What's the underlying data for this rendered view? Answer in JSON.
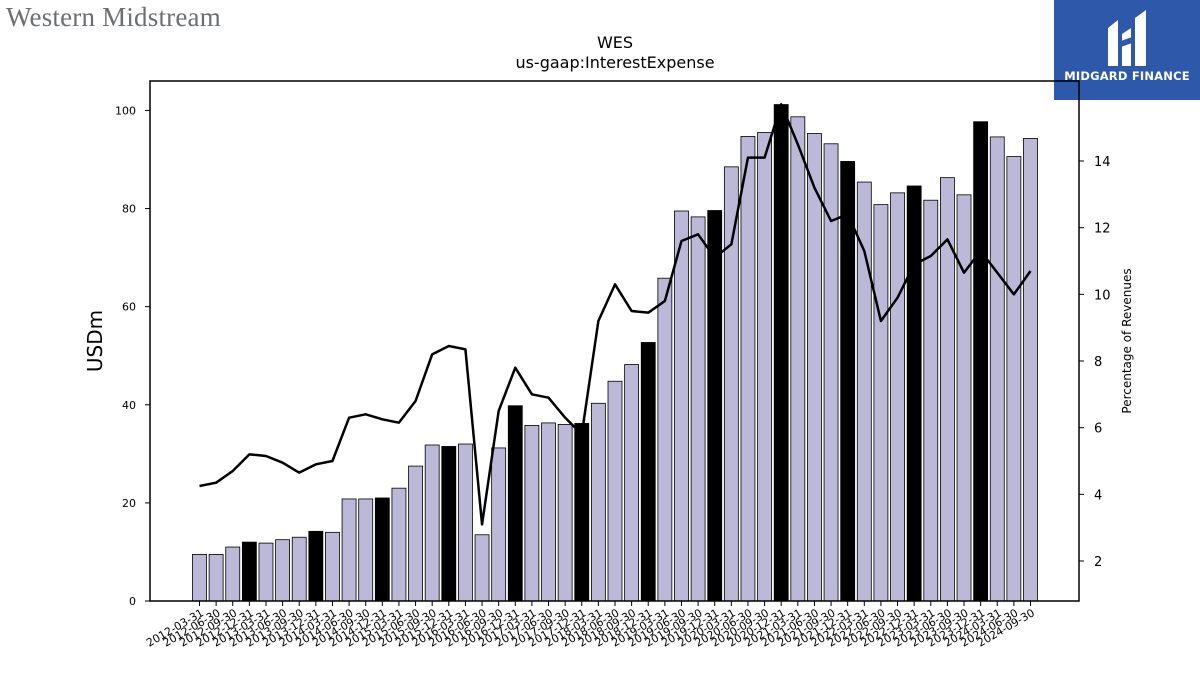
{
  "header": {
    "company_logo_text": "Western Midstream",
    "brand_text": "MIDGARD FINANCE"
  },
  "colors": {
    "bar_default": "#bcb9d8",
    "bar_highlight": "#000000",
    "line": "#000000",
    "brand_bg": "#2e59ab"
  },
  "chart_data": {
    "type": "bar",
    "title": "WES",
    "subtitle": "us-gaap:InterestExpense",
    "ylabel": "USDm",
    "y2label": "Percentage of Revenues",
    "ylim": [
      0,
      106
    ],
    "y2lim": [
      0.8,
      16.4
    ],
    "yticks": [
      0,
      20,
      40,
      60,
      80,
      100
    ],
    "y2ticks": [
      2,
      4,
      6,
      8,
      10,
      12,
      14
    ],
    "grid": false,
    "categories": [
      "2012-03-31",
      "2012-06-30",
      "2012-09-30",
      "2012-12-31",
      "2013-03-31",
      "2013-06-30",
      "2013-09-30",
      "2013-12-31",
      "2014-03-31",
      "2014-06-30",
      "2014-09-30",
      "2014-12-31",
      "2015-03-31",
      "2015-06-30",
      "2015-09-30",
      "2015-12-31",
      "2016-03-31",
      "2016-06-30",
      "2016-09-30",
      "2016-12-31",
      "2017-03-31",
      "2017-06-30",
      "2017-09-30",
      "2017-12-31",
      "2018-03-31",
      "2018-06-30",
      "2018-09-30",
      "2018-12-31",
      "2019-03-31",
      "2019-06-30",
      "2019-09-30",
      "2019-12-31",
      "2020-03-31",
      "2020-06-30",
      "2020-09-30",
      "2020-12-31",
      "2021-03-31",
      "2021-06-30",
      "2021-09-30",
      "2021-12-31",
      "2022-03-31",
      "2022-06-30",
      "2022-09-30",
      "2022-12-31",
      "2023-03-31",
      "2023-06-30",
      "2023-09-30",
      "2023-12-31",
      "2024-03-31",
      "2024-06-30",
      "2024-09-30"
    ],
    "series": [
      {
        "name": "",
        "axis": "left",
        "kind": "bar",
        "values": [
          9.5,
          9.5,
          11,
          12,
          11.8,
          12.5,
          13,
          14.2,
          14,
          20.8,
          20.8,
          21,
          23,
          27.5,
          31.8,
          31.5,
          32,
          13.5,
          31.2,
          39.8,
          35.8,
          36.3,
          36,
          36.2,
          40.3,
          44.8,
          48.2,
          52.7,
          65.8,
          79.5,
          78.3,
          79.6,
          88.5,
          94.7,
          95.5,
          101.2,
          98.7,
          95.3,
          93.2,
          89.6,
          85.4,
          80.8,
          83.2,
          84.6,
          81.7,
          86.3,
          82.8,
          97.7,
          94.6,
          90.6,
          94.3
        ],
        "highlight": [
          false,
          false,
          false,
          true,
          false,
          false,
          false,
          true,
          false,
          false,
          false,
          true,
          false,
          false,
          false,
          true,
          false,
          false,
          false,
          true,
          false,
          false,
          false,
          true,
          false,
          false,
          false,
          true,
          false,
          false,
          false,
          true,
          false,
          false,
          false,
          true,
          false,
          false,
          false,
          true,
          false,
          false,
          false,
          true,
          false,
          false,
          false,
          true,
          false,
          false,
          false
        ]
      },
      {
        "name": "",
        "axis": "right",
        "kind": "line",
        "values": [
          4.25,
          4.35,
          4.7,
          5.2,
          5.15,
          4.95,
          4.65,
          4.9,
          5.0,
          6.3,
          6.4,
          6.25,
          6.15,
          6.8,
          8.2,
          8.45,
          8.35,
          3.1,
          6.5,
          7.8,
          7.0,
          6.9,
          6.3,
          5.8,
          9.2,
          10.3,
          9.5,
          9.45,
          9.8,
          11.6,
          11.8,
          11.1,
          11.5,
          14.1,
          14.1,
          15.7,
          14.5,
          13.2,
          12.2,
          12.4,
          11.3,
          9.2,
          9.9,
          10.9,
          11.15,
          11.65,
          10.65,
          11.3,
          10.65,
          10.0,
          10.7
        ]
      }
    ]
  }
}
